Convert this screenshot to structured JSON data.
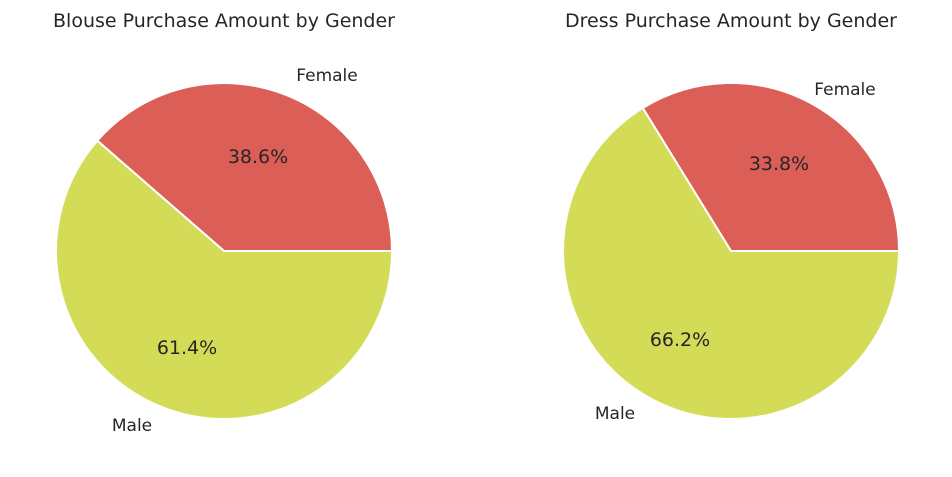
{
  "chart_data": [
    {
      "type": "pie",
      "title": "Blouse Purchase Amount by Gender",
      "labels": [
        "Female",
        "Male"
      ],
      "values": [
        38.6,
        61.4
      ],
      "value_labels": [
        "38.6%",
        "61.4%"
      ],
      "colors": [
        "#db5f57",
        "#d3db57"
      ]
    },
    {
      "type": "pie",
      "title": "Dress Purchase Amount by Gender",
      "labels": [
        "Female",
        "Male"
      ],
      "values": [
        33.8,
        66.2
      ],
      "value_labels": [
        "33.8%",
        "66.2%"
      ],
      "colors": [
        "#db5f57",
        "#d3db57"
      ]
    }
  ]
}
